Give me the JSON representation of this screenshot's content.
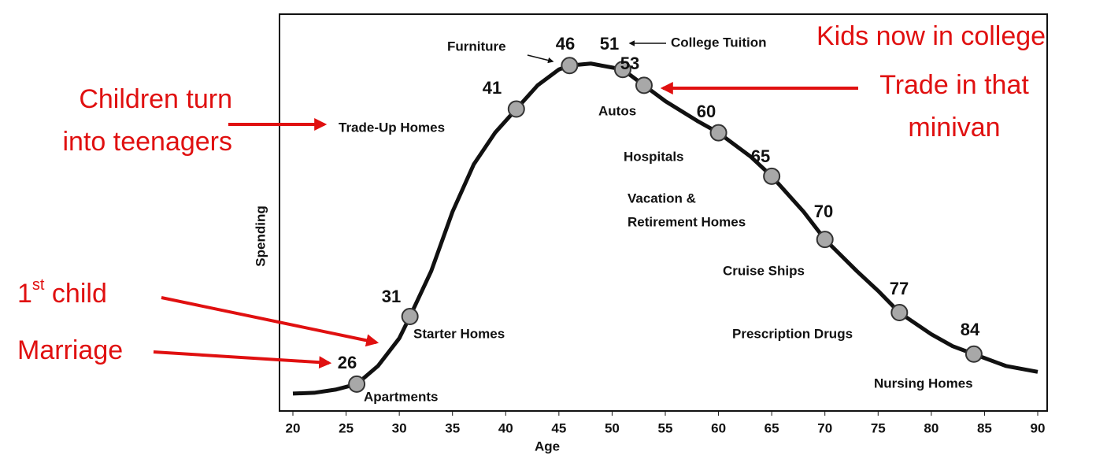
{
  "chart_data": {
    "type": "line",
    "x_label": "Age",
    "y_label": "Spending",
    "xlim": [
      20,
      90
    ],
    "xticks": [
      20,
      25,
      30,
      35,
      40,
      45,
      50,
      55,
      60,
      65,
      70,
      75,
      80,
      85,
      90
    ],
    "ylim": [
      0,
      100
    ],
    "series": [
      {
        "color": "#111111",
        "x": [
          20,
          22,
          24,
          26,
          28,
          30,
          31,
          33,
          35,
          37,
          39,
          41,
          43,
          45,
          46,
          48,
          50,
          51,
          53,
          55,
          58,
          60,
          63,
          65,
          68,
          70,
          73,
          75,
          77,
          80,
          82,
          84,
          87,
          90
        ],
        "values": [
          4,
          4.2,
          5,
          6.4,
          11,
          18,
          23.5,
          35,
          50,
          62,
          70,
          76,
          82,
          86,
          87,
          87.5,
          86.5,
          86,
          82,
          78,
          73,
          70,
          64,
          59,
          50,
          43,
          35,
          30,
          24.5,
          19,
          16,
          14,
          11,
          9.5
        ]
      }
    ],
    "points": {
      "color": "#a8a8a8",
      "x": [
        26,
        31,
        41,
        46,
        51,
        53,
        60,
        65,
        70,
        77,
        84
      ],
      "values": [
        6.4,
        23.5,
        76,
        87,
        86,
        82,
        70,
        59,
        43,
        24.5,
        14
      ],
      "labels": [
        [
          "Apartments"
        ],
        [
          "Starter Homes"
        ],
        [
          "Trade-Up Homes"
        ],
        [
          "Furniture"
        ],
        [
          "College Tuition"
        ],
        [
          "Autos"
        ],
        [
          "Hospitals"
        ],
        [
          "Vacation &",
          "Retirement Homes"
        ],
        [
          "Cruise Ships"
        ],
        [
          "Prescription Drugs"
        ],
        [
          "Nursing Homes"
        ]
      ]
    },
    "annotations": [
      {
        "lines": [
          "Children turn",
          "into teenagers"
        ]
      },
      {
        "parts": [
          "1",
          "st",
          " child"
        ]
      },
      {
        "lines": [
          "Marriage"
        ]
      },
      {
        "lines": [
          "Kids now in college"
        ]
      },
      {
        "lines": [
          "Trade in that",
          "minivan"
        ]
      }
    ],
    "annotation_color": "#e01010"
  }
}
